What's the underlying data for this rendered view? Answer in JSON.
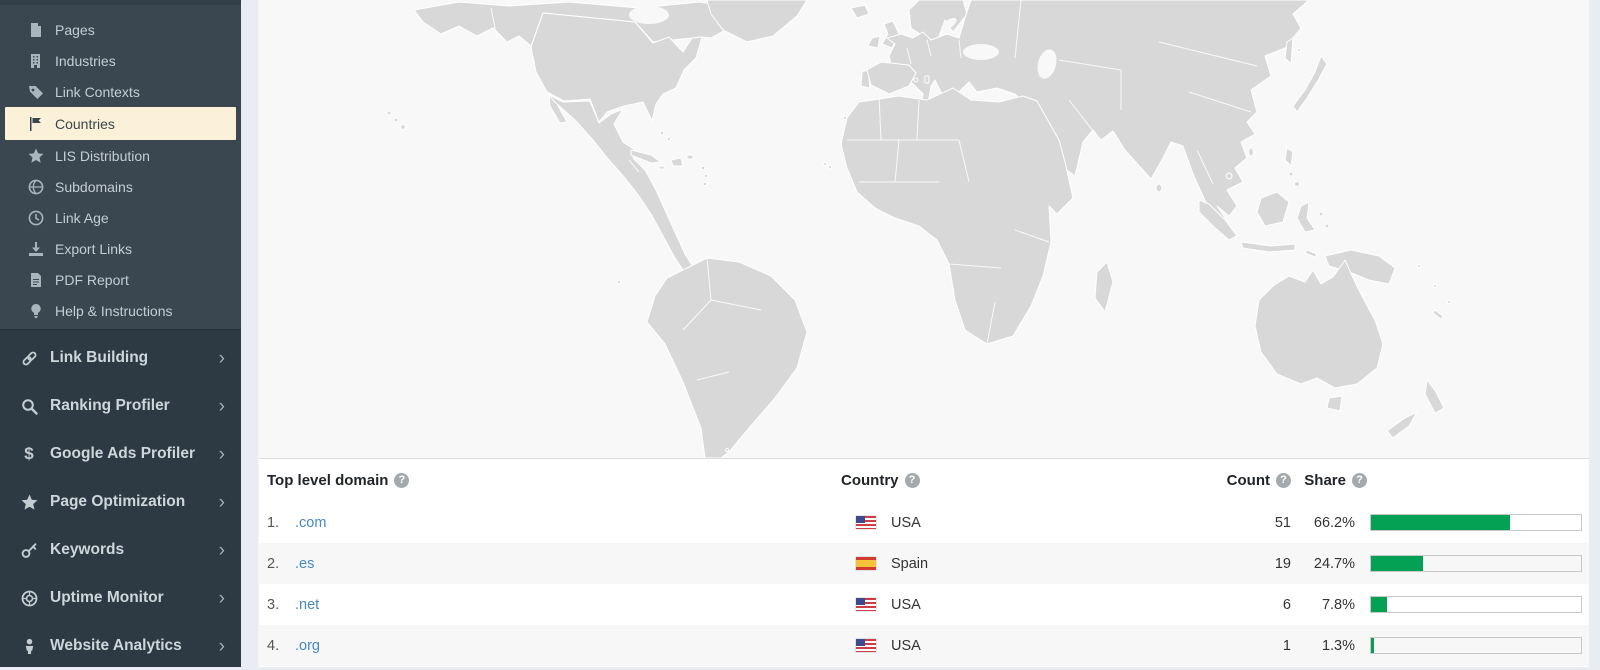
{
  "sidebar": {
    "chevron": "›",
    "submenu": {
      "items": [
        {
          "label": "Pages",
          "icon": "file-icon"
        },
        {
          "label": "Industries",
          "icon": "building-icon"
        },
        {
          "label": "Link Contexts",
          "icon": "tag-icon"
        },
        {
          "label": "Countries",
          "icon": "flag-icon",
          "active": true
        },
        {
          "label": "LIS Distribution",
          "icon": "star-icon"
        },
        {
          "label": "Subdomains",
          "icon": "globe-icon"
        },
        {
          "label": "Link Age",
          "icon": "clock-icon"
        },
        {
          "label": "Export Links",
          "icon": "download-icon"
        },
        {
          "label": "PDF Report",
          "icon": "file-text-icon"
        },
        {
          "label": "Help & Instructions",
          "icon": "lightbulb-icon"
        }
      ]
    },
    "sections": {
      "items": [
        {
          "label": "Link Building",
          "icon": "link-icon"
        },
        {
          "label": "Ranking Profiler",
          "icon": "search-icon"
        },
        {
          "label": "Google Ads Profiler",
          "icon": "dollar-icon"
        },
        {
          "label": "Page Optimization",
          "icon": "star-icon"
        },
        {
          "label": "Keywords",
          "icon": "key-icon"
        },
        {
          "label": "Uptime Monitor",
          "icon": "lifebuoy-icon"
        },
        {
          "label": "Website Analytics",
          "icon": "person-icon"
        }
      ]
    }
  },
  "map": {
    "ocean_fill": "#f8f8f8",
    "land_fill": "#d8d8d8",
    "usa_fill": "#141414",
    "spain_fill": "#8cbf52"
  },
  "table": {
    "help_glyph": "?",
    "bar_color": "#04a155",
    "headers": {
      "tld": "Top level domain",
      "country": "Country",
      "count": "Count",
      "share": "Share"
    },
    "rows": [
      {
        "rank": "1.",
        "tld": ".com",
        "flag": "us",
        "country": "USA",
        "count": "51",
        "share": "66.2%",
        "share_value": 66.2
      },
      {
        "rank": "2.",
        "tld": ".es",
        "flag": "es",
        "country": "Spain",
        "count": "19",
        "share": "24.7%",
        "share_value": 24.7
      },
      {
        "rank": "3.",
        "tld": ".net",
        "flag": "us",
        "country": "USA",
        "count": "6",
        "share": "7.8%",
        "share_value": 7.8
      },
      {
        "rank": "4.",
        "tld": ".org",
        "flag": "us",
        "country": "USA",
        "count": "1",
        "share": "1.3%",
        "share_value": 1.3
      }
    ]
  }
}
